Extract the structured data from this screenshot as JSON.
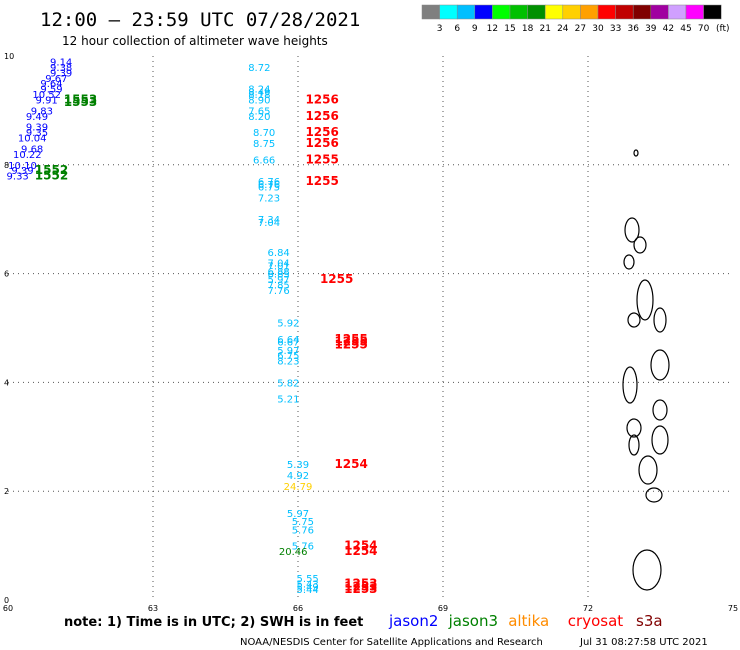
{
  "header": {
    "title": "12:00 – 23:59 UTC 07/28/2021",
    "subtitle": "12 hour collection of altimeter wave heights"
  },
  "colorbar": {
    "colors": [
      "#7f7f7f",
      "#00ffff",
      "#00bfff",
      "#0000ff",
      "#00ff00",
      "#00c000",
      "#009000",
      "#ffff00",
      "#ffd000",
      "#ffa000",
      "#ff0000",
      "#c00000",
      "#800000",
      "#a000a0",
      "#d0a0ff",
      "#ff00ff",
      "#000000"
    ],
    "labels": [
      "3",
      "6",
      "9",
      "12",
      "15",
      "18",
      "21",
      "24",
      "27",
      "30",
      "33",
      "36",
      "39",
      "42",
      "45",
      "70"
    ],
    "unit": "(ft)"
  },
  "footer": {
    "note": "note: 1) Time is in UTC; 2) SWH is in feet",
    "credit": "NOAA/NESDIS Center for Satellite Applications and Research",
    "timestamp": "Jul 31 08:27:58 UTC 2021",
    "legend": [
      {
        "label": "jason2",
        "color": "#0000ff"
      },
      {
        "label": "jason3",
        "color": "#008000"
      },
      {
        "label": "altika",
        "color": "#ff8c00"
      },
      {
        "label": "cryosat",
        "color": "#ff0000"
      },
      {
        "label": "s3a",
        "color": "#800000"
      }
    ]
  },
  "chart_data": {
    "type": "scatter",
    "xlim": [
      60,
      75
    ],
    "ylim": [
      0,
      10
    ],
    "xticks": [
      "60",
      "63",
      "66",
      "69",
      "72",
      "75"
    ],
    "yticks": [
      "0",
      "2",
      "4",
      "6",
      "8",
      "10"
    ],
    "grid": true,
    "labels": [
      {
        "x": 61.1,
        "y": 9.9,
        "text": "9.14",
        "color": "#0000ff"
      },
      {
        "x": 61.1,
        "y": 9.8,
        "text": "9.38",
        "color": "#0000ff"
      },
      {
        "x": 61.1,
        "y": 9.7,
        "text": "9.39",
        "color": "#0000ff"
      },
      {
        "x": 61.0,
        "y": 9.6,
        "text": "9.67",
        "color": "#0000ff"
      },
      {
        "x": 60.9,
        "y": 9.5,
        "text": "9.64",
        "color": "#0000ff"
      },
      {
        "x": 60.9,
        "y": 9.4,
        "text": "9.59",
        "color": "#0000ff"
      },
      {
        "x": 60.8,
        "y": 9.3,
        "text": "10.52",
        "color": "#0000ff"
      },
      {
        "x": 60.8,
        "y": 9.2,
        "text": "9.91",
        "color": "#0000ff"
      },
      {
        "x": 60.7,
        "y": 9.0,
        "text": "9.83",
        "color": "#0000ff"
      },
      {
        "x": 60.6,
        "y": 8.9,
        "text": "9.49",
        "color": "#0000ff"
      },
      {
        "x": 60.6,
        "y": 8.7,
        "text": "9.39",
        "color": "#0000ff"
      },
      {
        "x": 60.6,
        "y": 8.6,
        "text": "9.35",
        "color": "#0000ff"
      },
      {
        "x": 60.5,
        "y": 8.5,
        "text": "10.04",
        "color": "#0000ff"
      },
      {
        "x": 60.5,
        "y": 8.3,
        "text": "9.68",
        "color": "#0000ff"
      },
      {
        "x": 60.4,
        "y": 8.2,
        "text": "10.22",
        "color": "#0000ff"
      },
      {
        "x": 60.3,
        "y": 8.0,
        "text": "10.10",
        "color": "#0000ff"
      },
      {
        "x": 60.3,
        "y": 7.9,
        "text": "9.39",
        "color": "#0000ff"
      },
      {
        "x": 60.2,
        "y": 7.8,
        "text": "9.33",
        "color": "#0000ff"
      },
      {
        "x": 61.5,
        "y": 9.2,
        "text": "1553",
        "color": "#008000",
        "big": true
      },
      {
        "x": 61.5,
        "y": 9.15,
        "text": "1553",
        "color": "#008000",
        "big": true
      },
      {
        "x": 60.9,
        "y": 7.9,
        "text": "1552",
        "color": "#008000",
        "big": true
      },
      {
        "x": 60.9,
        "y": 7.8,
        "text": "1552",
        "color": "#008000",
        "big": true
      },
      {
        "x": 65.2,
        "y": 9.8,
        "text": "8.72",
        "color": "#00bfff"
      },
      {
        "x": 65.2,
        "y": 9.4,
        "text": "8.24",
        "color": "#00bfff"
      },
      {
        "x": 65.2,
        "y": 9.35,
        "text": "8.49",
        "color": "#00bfff"
      },
      {
        "x": 65.2,
        "y": 9.3,
        "text": "8.18",
        "color": "#00bfff"
      },
      {
        "x": 65.2,
        "y": 9.2,
        "text": "8.90",
        "color": "#00bfff"
      },
      {
        "x": 65.2,
        "y": 9.0,
        "text": "7.65",
        "color": "#00bfff"
      },
      {
        "x": 65.2,
        "y": 8.9,
        "text": "8.20",
        "color": "#00bfff"
      },
      {
        "x": 65.3,
        "y": 8.6,
        "text": "8.70",
        "color": "#00bfff"
      },
      {
        "x": 65.3,
        "y": 8.4,
        "text": "8.75",
        "color": "#00bfff"
      },
      {
        "x": 65.3,
        "y": 8.1,
        "text": "6.66",
        "color": "#00bfff"
      },
      {
        "x": 65.4,
        "y": 7.7,
        "text": "6.76",
        "color": "#00bfff"
      },
      {
        "x": 65.4,
        "y": 7.65,
        "text": "6.76",
        "color": "#00bfff"
      },
      {
        "x": 65.4,
        "y": 7.6,
        "text": "6.75",
        "color": "#00bfff"
      },
      {
        "x": 65.4,
        "y": 7.4,
        "text": "7.23",
        "color": "#00bfff"
      },
      {
        "x": 65.4,
        "y": 7.0,
        "text": "7.34",
        "color": "#00bfff"
      },
      {
        "x": 65.4,
        "y": 6.95,
        "text": "7.04",
        "color": "#00bfff"
      },
      {
        "x": 65.6,
        "y": 6.4,
        "text": "6.84",
        "color": "#00bfff"
      },
      {
        "x": 65.6,
        "y": 6.2,
        "text": "7.04",
        "color": "#00bfff"
      },
      {
        "x": 65.6,
        "y": 6.15,
        "text": "7.01",
        "color": "#00bfff"
      },
      {
        "x": 65.6,
        "y": 6.05,
        "text": "6.88",
        "color": "#00bfff"
      },
      {
        "x": 65.6,
        "y": 6.0,
        "text": "6.85",
        "color": "#00bfff"
      },
      {
        "x": 65.6,
        "y": 5.9,
        "text": "5.97",
        "color": "#00bfff"
      },
      {
        "x": 65.6,
        "y": 5.8,
        "text": "7.85",
        "color": "#00bfff"
      },
      {
        "x": 65.6,
        "y": 5.7,
        "text": "7.76",
        "color": "#00bfff"
      },
      {
        "x": 65.8,
        "y": 5.1,
        "text": "5.92",
        "color": "#00bfff"
      },
      {
        "x": 65.8,
        "y": 4.8,
        "text": "6.64",
        "color": "#00bfff"
      },
      {
        "x": 65.8,
        "y": 4.75,
        "text": "6.67",
        "color": "#00bfff"
      },
      {
        "x": 65.8,
        "y": 4.6,
        "text": "5.97",
        "color": "#00bfff"
      },
      {
        "x": 65.8,
        "y": 4.5,
        "text": "6.75",
        "color": "#00bfff"
      },
      {
        "x": 65.8,
        "y": 4.4,
        "text": "8.23",
        "color": "#00bfff"
      },
      {
        "x": 65.8,
        "y": 4.0,
        "text": "5.82",
        "color": "#00bfff"
      },
      {
        "x": 65.8,
        "y": 3.7,
        "text": "5.21",
        "color": "#00bfff"
      },
      {
        "x": 66.0,
        "y": 2.5,
        "text": "5.39",
        "color": "#00bfff"
      },
      {
        "x": 66.0,
        "y": 2.3,
        "text": "4.92",
        "color": "#00bfff"
      },
      {
        "x": 66.0,
        "y": 2.1,
        "text": "24.79",
        "color": "#ffd000"
      },
      {
        "x": 66.0,
        "y": 1.6,
        "text": "5.97",
        "color": "#00bfff"
      },
      {
        "x": 66.1,
        "y": 1.45,
        "text": "5.75",
        "color": "#00bfff"
      },
      {
        "x": 66.1,
        "y": 1.3,
        "text": "5.76",
        "color": "#00bfff"
      },
      {
        "x": 66.1,
        "y": 1.0,
        "text": "5.76",
        "color": "#00bfff"
      },
      {
        "x": 65.9,
        "y": 0.9,
        "text": "20.46",
        "color": "#008000"
      },
      {
        "x": 66.2,
        "y": 0.4,
        "text": "5.55",
        "color": "#00bfff"
      },
      {
        "x": 66.2,
        "y": 0.3,
        "text": "5.43",
        "color": "#00bfff"
      },
      {
        "x": 66.2,
        "y": 0.25,
        "text": "5.49",
        "color": "#00bfff"
      },
      {
        "x": 66.2,
        "y": 0.2,
        "text": "5.44",
        "color": "#00bfff"
      },
      {
        "x": 66.5,
        "y": 9.2,
        "text": "1256",
        "color": "#ff0000",
        "big": true
      },
      {
        "x": 66.5,
        "y": 8.9,
        "text": "1256",
        "color": "#ff0000",
        "big": true
      },
      {
        "x": 66.5,
        "y": 8.6,
        "text": "1256",
        "color": "#ff0000",
        "big": true
      },
      {
        "x": 66.5,
        "y": 8.4,
        "text": "1256",
        "color": "#ff0000",
        "big": true
      },
      {
        "x": 66.5,
        "y": 8.1,
        "text": "1255",
        "color": "#ff0000",
        "big": true
      },
      {
        "x": 66.5,
        "y": 7.7,
        "text": "1255",
        "color": "#ff0000",
        "big": true
      },
      {
        "x": 66.8,
        "y": 5.9,
        "text": "1255",
        "color": "#ff0000",
        "big": true
      },
      {
        "x": 67.1,
        "y": 4.8,
        "text": "1255",
        "color": "#ff0000",
        "big": true
      },
      {
        "x": 67.1,
        "y": 4.75,
        "text": "1255",
        "color": "#ff0000",
        "big": true
      },
      {
        "x": 67.1,
        "y": 4.7,
        "text": "1255",
        "color": "#ff0000",
        "big": true
      },
      {
        "x": 67.1,
        "y": 2.5,
        "text": "1254",
        "color": "#ff0000",
        "big": true
      },
      {
        "x": 67.3,
        "y": 1.0,
        "text": "1254",
        "color": "#ff0000",
        "big": true
      },
      {
        "x": 67.3,
        "y": 0.9,
        "text": "1254",
        "color": "#ff0000",
        "big": true
      },
      {
        "x": 67.3,
        "y": 0.3,
        "text": "1253",
        "color": "#ff0000",
        "big": true
      },
      {
        "x": 67.3,
        "y": 0.25,
        "text": "1253",
        "color": "#ff0000",
        "big": true
      },
      {
        "x": 67.3,
        "y": 0.2,
        "text": "1253",
        "color": "#ff0000",
        "big": true
      }
    ]
  }
}
